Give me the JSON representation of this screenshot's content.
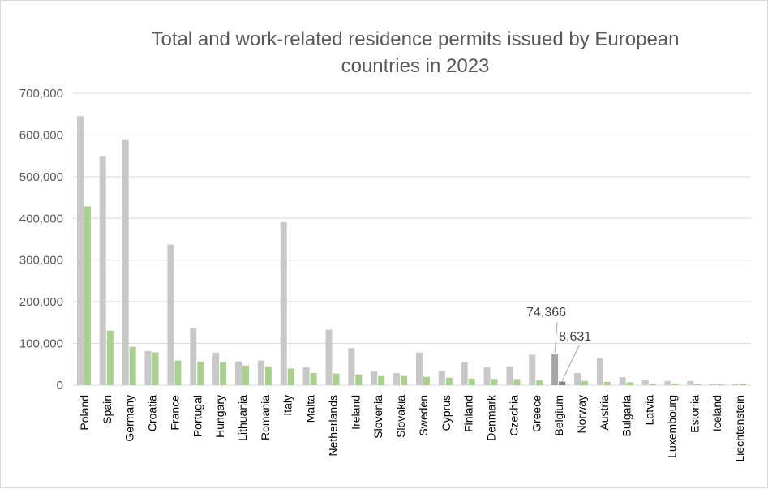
{
  "chart_data": {
    "type": "bar",
    "title_lines": [
      "Total and work-related residence permits issued by European",
      "countries in 2023"
    ],
    "xlabel": "",
    "ylabel": "",
    "ylim": [
      0,
      700000
    ],
    "yticks": [
      0,
      100000,
      200000,
      300000,
      400000,
      500000,
      600000,
      700000
    ],
    "ytick_labels": [
      "0",
      "100,000",
      "200,000",
      "300,000",
      "400,000",
      "500,000",
      "600,000",
      "700,000"
    ],
    "grid": true,
    "legend": "none",
    "categories": [
      "Poland",
      "Spain",
      "Germany",
      "Croatia",
      "France",
      "Portugal",
      "Hungary",
      "Lithuania",
      "Romania",
      "Italy",
      "Malta",
      "Netherlands",
      "Ireland",
      "Slovenia",
      "Slovakia",
      "Sweden",
      "Cyprus",
      "Finland",
      "Denmark",
      "Czechia",
      "Greece",
      "Belgium",
      "Norway",
      "Austria",
      "Bulgaria",
      "Latvia",
      "Luxembourg",
      "Estonia",
      "Iceland",
      "Liechtenstein"
    ],
    "series": [
      {
        "color": "#c8c8c8",
        "values": [
          645000,
          550000,
          588000,
          82000,
          337000,
          137000,
          78000,
          57000,
          59000,
          391000,
          43000,
          133000,
          89000,
          33000,
          29000,
          78000,
          35000,
          55000,
          43000,
          45000,
          73000,
          74366,
          29000,
          64000,
          19000,
          12000,
          10000,
          10000,
          4000,
          3000
        ]
      },
      {
        "color": "#a9d18e",
        "values": [
          429000,
          131000,
          92000,
          79000,
          59000,
          56000,
          55000,
          47000,
          45000,
          40000,
          29000,
          28000,
          26000,
          22000,
          22000,
          20000,
          18000,
          16000,
          15000,
          15000,
          12000,
          8631,
          10000,
          8000,
          7000,
          4000,
          4000,
          2000,
          2000,
          2000
        ]
      }
    ],
    "highlight": {
      "category": "Belgium",
      "colors": [
        "#a6a6a6",
        "#7f7f7f"
      ],
      "labels": [
        "74,366",
        "8,631"
      ]
    }
  }
}
